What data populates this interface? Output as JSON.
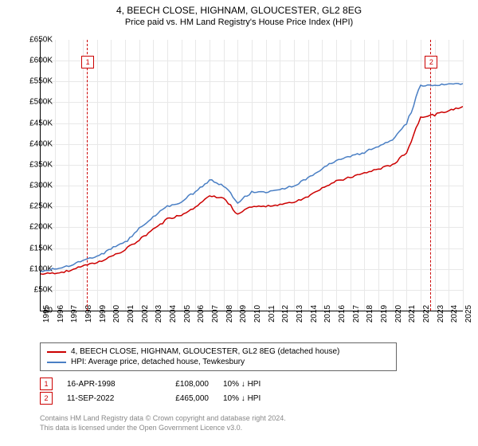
{
  "title": "4, BEECH CLOSE, HIGHNAM, GLOUCESTER, GL2 8EG",
  "subtitle": "Price paid vs. HM Land Registry's House Price Index (HPI)",
  "chart": {
    "type": "line",
    "background_color": "#ffffff",
    "grid_color": "#e8e8e8",
    "axis_color": "#000000",
    "ylim": [
      0,
      650
    ],
    "ytick_step": 50,
    "y_unit_prefix": "£",
    "y_unit_suffix": "K",
    "x_years": [
      1995,
      1996,
      1997,
      1998,
      1999,
      2000,
      2001,
      2002,
      2003,
      2004,
      2005,
      2006,
      2007,
      2008,
      2009,
      2010,
      2011,
      2012,
      2013,
      2014,
      2015,
      2016,
      2017,
      2018,
      2019,
      2020,
      2021,
      2022,
      2023,
      2024,
      2025
    ],
    "series": [
      {
        "name": "4, BEECH CLOSE, HIGHNAM, GLOUCESTER, GL2 8EG (detached house)",
        "color": "#cc0000",
        "line_width": 1.5,
        "values": [
          88,
          90,
          95,
          108,
          115,
          130,
          145,
          170,
          195,
          220,
          230,
          250,
          275,
          270,
          230,
          250,
          250,
          255,
          260,
          275,
          295,
          310,
          320,
          330,
          340,
          350,
          380,
          465,
          470,
          480,
          490
        ]
      },
      {
        "name": "HPI: Average price, detached house, Tewkesbury",
        "color": "#4a7fc4",
        "line_width": 1.5,
        "values": [
          95,
          100,
          108,
          120,
          130,
          148,
          165,
          195,
          225,
          250,
          260,
          285,
          315,
          300,
          260,
          285,
          285,
          290,
          300,
          318,
          340,
          360,
          370,
          380,
          395,
          410,
          450,
          540,
          540,
          545,
          545
        ]
      }
    ],
    "markers": [
      {
        "num": "1",
        "year_frac": 1998.29,
        "box_top": 20
      },
      {
        "num": "2",
        "year_frac": 2022.7,
        "box_top": 20
      }
    ],
    "label_fontsize": 10,
    "title_fontsize": 12
  },
  "legend": {
    "items": [
      {
        "color": "#cc0000",
        "label": "4, BEECH CLOSE, HIGHNAM, GLOUCESTER, GL2 8EG (detached house)"
      },
      {
        "color": "#4a7fc4",
        "label": "HPI: Average price, detached house, Tewkesbury"
      }
    ]
  },
  "events": [
    {
      "num": "1",
      "date": "16-APR-1998",
      "price": "£108,000",
      "pct": "10% ↓ HPI"
    },
    {
      "num": "2",
      "date": "11-SEP-2022",
      "price": "£465,000",
      "pct": "10% ↓ HPI"
    }
  ],
  "footer": {
    "line1": "Contains HM Land Registry data © Crown copyright and database right 2024.",
    "line2": "This data is licensed under the Open Government Licence v3.0."
  }
}
